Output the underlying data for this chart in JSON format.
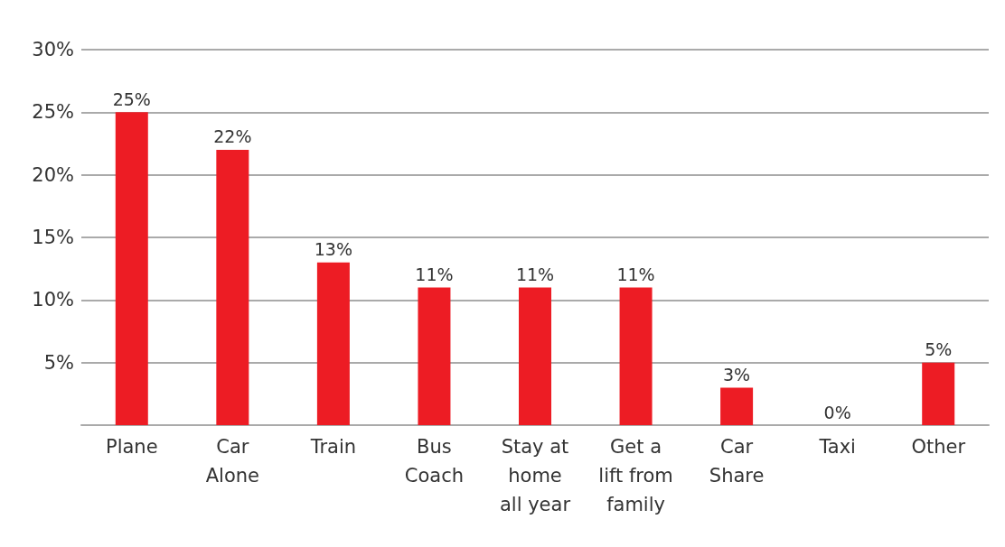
{
  "chart_data": {
    "type": "bar",
    "categories": [
      "Plane",
      "Car\nAlone",
      "Train",
      "Bus\nCoach",
      "Stay at\nhome\nall year",
      "Get a\nlift from\nfamily",
      "Car\nShare",
      "Taxi",
      "Other"
    ],
    "values": [
      25,
      22,
      13,
      11,
      11,
      11,
      3,
      0,
      5
    ],
    "color": "#ed1c24",
    "value_labels": [
      "25%",
      "22%",
      "13%",
      "11%",
      "11%",
      "11%",
      "3%",
      "0%",
      "5%"
    ],
    "ylim": [
      0,
      30
    ],
    "yticks": [
      {
        "value": 5,
        "label": "5%"
      },
      {
        "value": 10,
        "label": "10%"
      },
      {
        "value": 15,
        "label": "15%"
      },
      {
        "value": 20,
        "label": "20%"
      },
      {
        "value": 25,
        "label": "25%"
      },
      {
        "value": 30,
        "label": "30%"
      }
    ],
    "grid": "y"
  }
}
